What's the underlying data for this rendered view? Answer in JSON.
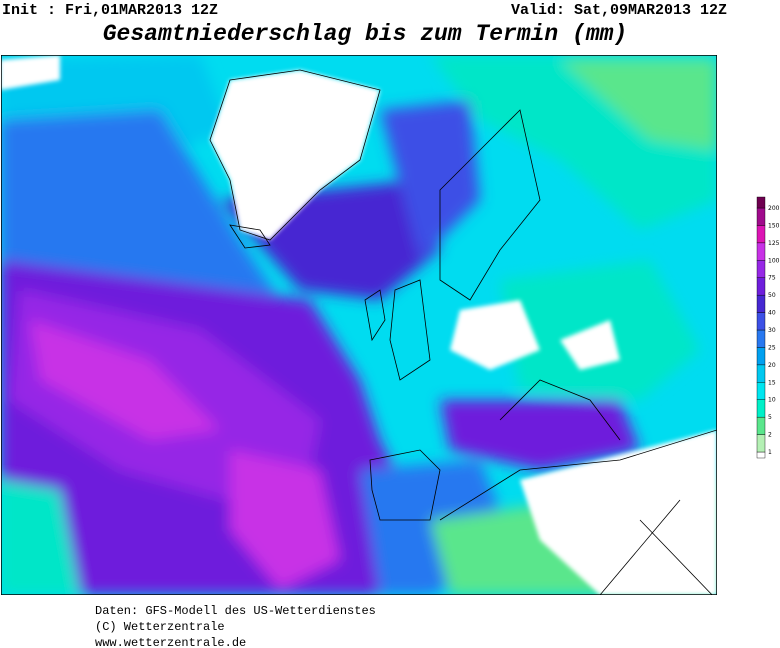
{
  "header": {
    "init": "Init : Fri,01MAR2013 12Z",
    "valid": "Valid: Sat,09MAR2013 12Z",
    "title": "Gesamtniederschlag bis zum Termin (mm)"
  },
  "legend": {
    "levels": [
      1,
      2,
      5,
      10,
      15,
      20,
      25,
      30,
      40,
      50,
      75,
      100,
      125,
      150,
      200
    ],
    "colors": [
      "#ffffff",
      "#b4f0b4",
      "#5ae68c",
      "#00f0c8",
      "#00e6f0",
      "#00c8f0",
      "#00a0f0",
      "#2878f0",
      "#3c50e6",
      "#4628d2",
      "#6e1edc",
      "#9628e6",
      "#c832e6",
      "#dc14b4",
      "#a00a8c",
      "#6e0050"
    ]
  },
  "footer": {
    "lines": [
      "Daten: GFS-Modell des US-Wetterdienstes",
      "(C) Wetterzentrale",
      "www.wetterzentrale.de"
    ]
  }
}
